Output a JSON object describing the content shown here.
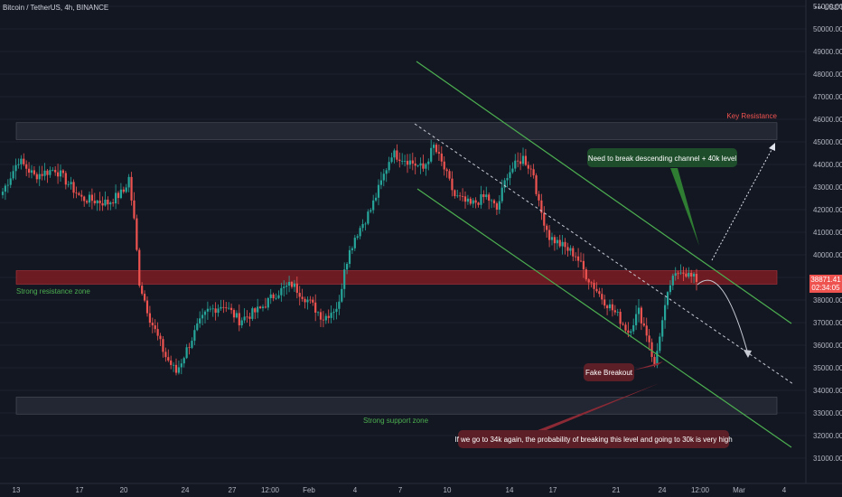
{
  "header": {
    "symbol": "Bitcoin / TetherUS, 4h, BINANCE",
    "currency": "USDT",
    "menu_icon": "dots-menu-icon"
  },
  "price_tag": {
    "price": "38871.41",
    "countdown": "02:34:05"
  },
  "annotations": {
    "key_resistance": "Key Resistance",
    "strong_resistance": "Strong resistance zone",
    "strong_support": "Strong support zone",
    "need_to_break": "Need to break descending channel + 40k level",
    "fake_breakout": "Fake Breakout",
    "probability_note": "If we go to 34k again, the probability of breaking this level and going to 30k is very high"
  },
  "colors": {
    "background": "#131722",
    "bull": "#26a69a",
    "bear": "#ef5350",
    "channel": "#4caf50",
    "resistance_zone": "#8b1e23",
    "grey_zone": "#2a2e39",
    "green_box": "#1e4d2b",
    "red_box": "#5c1f27"
  },
  "chart_data": {
    "type": "candlestick",
    "ylim": [
      30000,
      51000
    ],
    "price_ticks": [
      31000,
      32000,
      33000,
      34000,
      35000,
      36000,
      37000,
      38000,
      39000,
      40000,
      41000,
      42000,
      43000,
      44000,
      45000,
      46000,
      47000,
      48000,
      49000,
      50000,
      51000
    ],
    "x_ticks": [
      "13",
      "17",
      "20",
      "24",
      "27",
      "12:00",
      "Feb",
      "4",
      "7",
      "10",
      "14",
      "17",
      "21",
      "24",
      "12:00",
      "Mar",
      "4"
    ],
    "zones": [
      {
        "name": "key-resistance",
        "low": 45100,
        "high": 45850
      },
      {
        "name": "strong-resistance",
        "low": 38700,
        "high": 39300
      },
      {
        "name": "strong-support",
        "low": 32950,
        "high": 33700
      }
    ],
    "anchors": [
      [
        0,
        42800
      ],
      [
        6,
        44200
      ],
      [
        12,
        43500
      ],
      [
        20,
        43800
      ],
      [
        30,
        42500
      ],
      [
        40,
        42300
      ],
      [
        46,
        42800
      ],
      [
        48,
        43400
      ],
      [
        50,
        41500
      ],
      [
        52,
        38800
      ],
      [
        56,
        37200
      ],
      [
        62,
        35500
      ],
      [
        66,
        34800
      ],
      [
        70,
        35800
      ],
      [
        74,
        36800
      ],
      [
        78,
        37500
      ],
      [
        84,
        37800
      ],
      [
        90,
        37100
      ],
      [
        98,
        37600
      ],
      [
        104,
        38300
      ],
      [
        110,
        38700
      ],
      [
        116,
        38000
      ],
      [
        122,
        37200
      ],
      [
        128,
        37800
      ],
      [
        130,
        39500
      ],
      [
        134,
        40800
      ],
      [
        140,
        42000
      ],
      [
        144,
        43200
      ],
      [
        148,
        44500
      ],
      [
        154,
        44200
      ],
      [
        160,
        43800
      ],
      [
        164,
        44800
      ],
      [
        168,
        43800
      ],
      [
        172,
        42600
      ],
      [
        178,
        42200
      ],
      [
        184,
        42600
      ],
      [
        188,
        42000
      ],
      [
        192,
        43600
      ],
      [
        198,
        44300
      ],
      [
        202,
        43600
      ],
      [
        204,
        42200
      ],
      [
        208,
        40800
      ],
      [
        214,
        40300
      ],
      [
        218,
        40000
      ],
      [
        222,
        39100
      ],
      [
        228,
        38100
      ],
      [
        234,
        37300
      ],
      [
        238,
        36600
      ],
      [
        242,
        37500
      ],
      [
        246,
        36200
      ],
      [
        248,
        35000
      ],
      [
        250,
        36500
      ],
      [
        254,
        38700
      ],
      [
        258,
        39400
      ],
      [
        262,
        39000
      ],
      [
        264,
        38900
      ]
    ]
  }
}
